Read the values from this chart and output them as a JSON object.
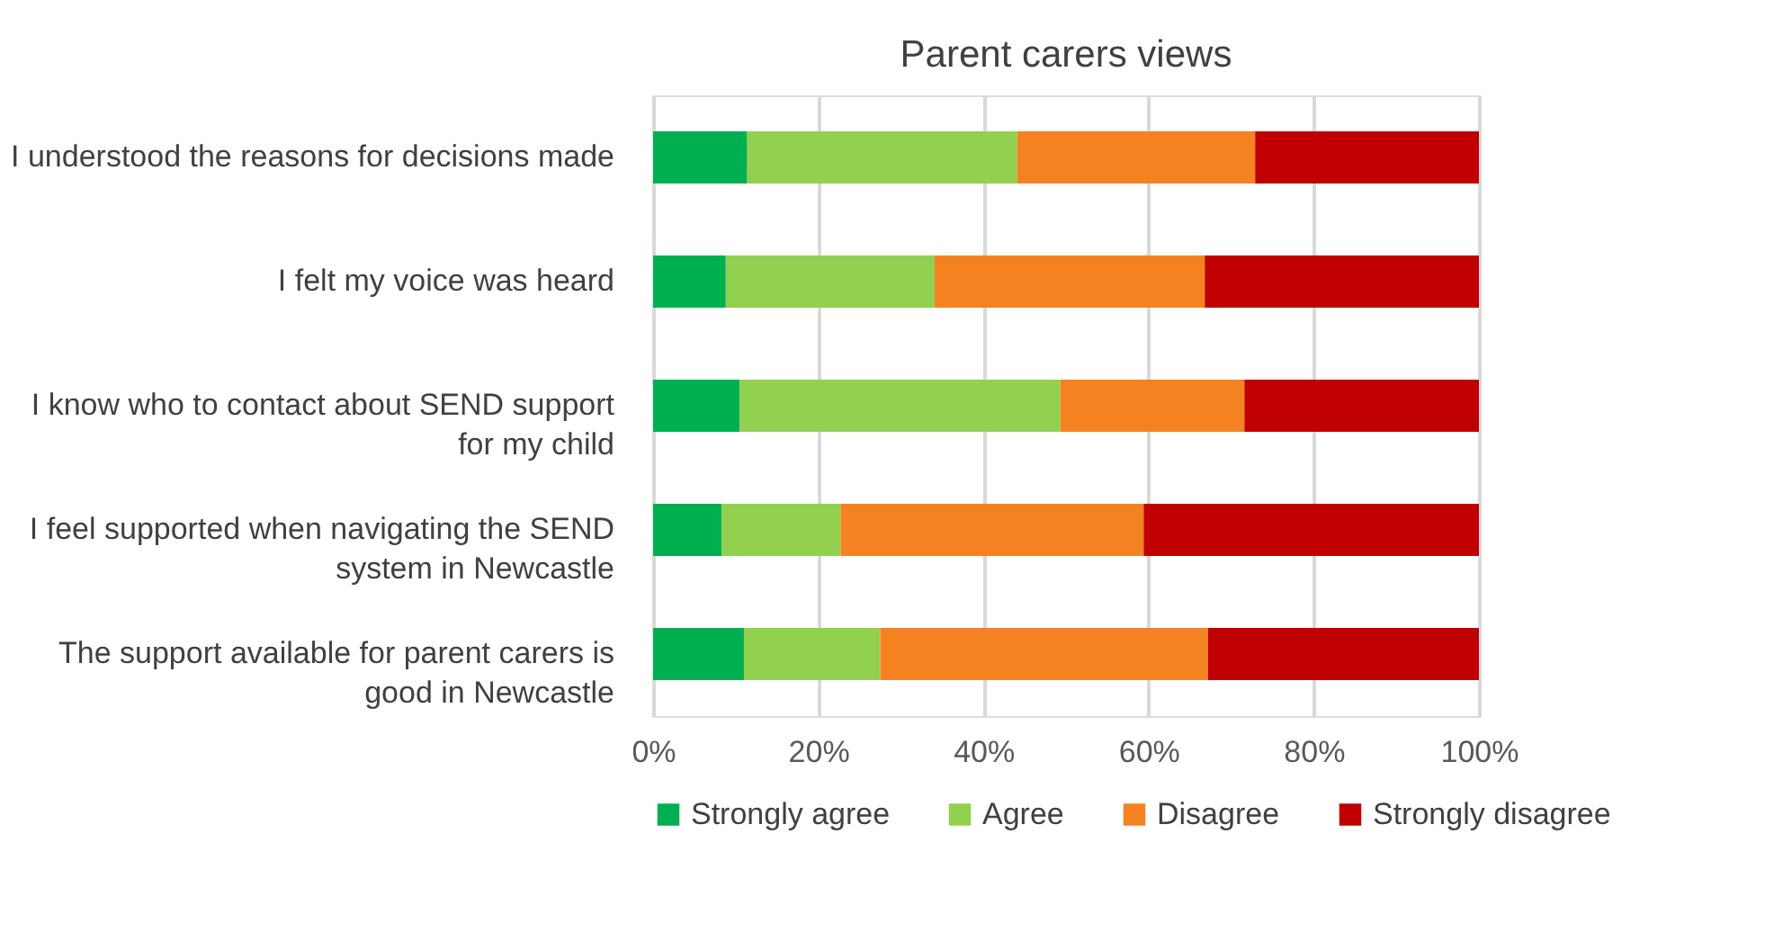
{
  "chart_data": {
    "type": "bar",
    "orientation": "horizontal",
    "stacked": true,
    "title": "Parent carers views",
    "categories": [
      "I understood the reasons for decisions made",
      "I felt my voice was heard",
      "I know who to contact about SEND support for my child",
      "I feel supported when navigating the SEND system in Newcastle",
      "The support available for parent carers is good in Newcastle"
    ],
    "series": [
      {
        "name": "Strongly agree",
        "color": "#00b050",
        "values": [
          11.4,
          8.8,
          10.5,
          8.3,
          11.0
        ]
      },
      {
        "name": "Agree",
        "color": "#92d050",
        "values": [
          32.7,
          25.3,
          38.8,
          14.4,
          16.5
        ]
      },
      {
        "name": "Disagree",
        "color": "#f58220",
        "values": [
          28.8,
          32.7,
          22.3,
          36.7,
          39.7
        ]
      },
      {
        "name": "Strongly disagree",
        "color": "#c00000",
        "values": [
          27.1,
          33.2,
          28.4,
          40.6,
          32.8
        ]
      }
    ],
    "xlim": [
      0,
      100
    ],
    "xticks": [
      {
        "value": 0,
        "label": "0%"
      },
      {
        "value": 20,
        "label": "20%"
      },
      {
        "value": 40,
        "label": "40%"
      },
      {
        "value": 60,
        "label": "60%"
      },
      {
        "value": 80,
        "label": "80%"
      },
      {
        "value": 100,
        "label": "100%"
      }
    ],
    "grid": "x",
    "legend": "bottom"
  }
}
